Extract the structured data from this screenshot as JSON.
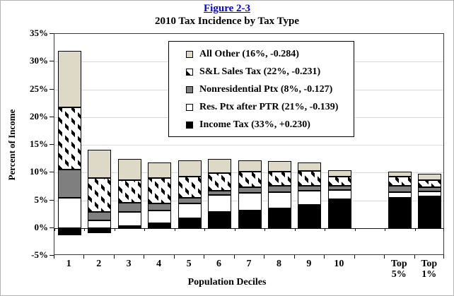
{
  "figure_link": "Figure 2-3",
  "title": "2010 Tax Incidence by Tax Type",
  "y_axis": {
    "title": "Percent of Income",
    "max": 35,
    "min": -5,
    "step": 5,
    "tick_suffix": "%"
  },
  "x_axis": {
    "title": "Population Deciles",
    "labels": [
      "1",
      "2",
      "3",
      "4",
      "5",
      "6",
      "7",
      "8",
      "9",
      "10",
      "Top\n5%",
      "Top\n1%"
    ]
  },
  "legend": [
    {
      "key": "all_other",
      "label": "All Other (16%, -0.284)"
    },
    {
      "key": "sales_tax",
      "label": "S&L Sales Tax (22%, -0.231)"
    },
    {
      "key": "nonres_ptx",
      "label": "Nonresidential Ptx (8%, -0.127)"
    },
    {
      "key": "res_ptx",
      "label": "Res. Ptx after PTR (21%, -0.139)"
    },
    {
      "key": "income_tax",
      "label": "Income Tax (33%, +0.230)"
    }
  ],
  "chart_data": {
    "type": "bar",
    "stacked": true,
    "title": "2010 Tax Incidence by Tax Type",
    "xlabel": "Population Deciles",
    "ylabel": "Percent of Income",
    "ylim": [
      -5,
      35
    ],
    "grid": true,
    "legend_position": "top-center-inside",
    "categories": [
      "1",
      "2",
      "3",
      "4",
      "5",
      "6",
      "7",
      "8",
      "9",
      "10",
      "Top 5%",
      "Top 1%"
    ],
    "series": [
      {
        "name": "Income Tax (33%, +0.230)",
        "key": "income_tax",
        "color": "#000000",
        "values": [
          -1.3,
          -0.9,
          0.4,
          0.8,
          1.8,
          2.9,
          3.1,
          3.5,
          4.2,
          5.2,
          5.4,
          5.7
        ]
      },
      {
        "name": "Res. Ptx after PTR (21%, -0.139)",
        "key": "res_ptx",
        "color": "#ffffff",
        "values": [
          5.5,
          1.4,
          2.5,
          2.3,
          2.6,
          3.0,
          3.2,
          3.0,
          2.5,
          1.7,
          1.1,
          0.9
        ]
      },
      {
        "name": "Nonresidential Ptx (8%, -0.127)",
        "key": "nonres_ptx",
        "color": "#7f7f7f",
        "values": [
          5.0,
          1.5,
          1.7,
          1.3,
          1.0,
          0.8,
          1.0,
          1.1,
          0.9,
          0.7,
          1.1,
          0.8
        ]
      },
      {
        "name": "S&L Sales Tax (22%, -0.231)",
        "key": "sales_tax",
        "color": "diagonal-dash-pattern",
        "values": [
          11.3,
          6.1,
          4.0,
          4.6,
          3.9,
          3.2,
          2.8,
          2.6,
          2.7,
          1.7,
          1.7,
          1.2
        ]
      },
      {
        "name": "All Other (16%, -0.284)",
        "key": "all_other",
        "color": "#ded9c6",
        "values": [
          10.2,
          5.1,
          3.8,
          2.8,
          2.9,
          2.6,
          2.1,
          1.9,
          1.5,
          1.1,
          0.9,
          1.2
        ]
      }
    ]
  },
  "colors": {
    "link_blue": "#0000ee",
    "all_other_tan": "#ded9c6",
    "nonres_gray": "#7f7f7f",
    "income_black": "#000000",
    "white": "#ffffff",
    "gridline": "#d9d9d9",
    "frame": "#b3b3b3"
  }
}
